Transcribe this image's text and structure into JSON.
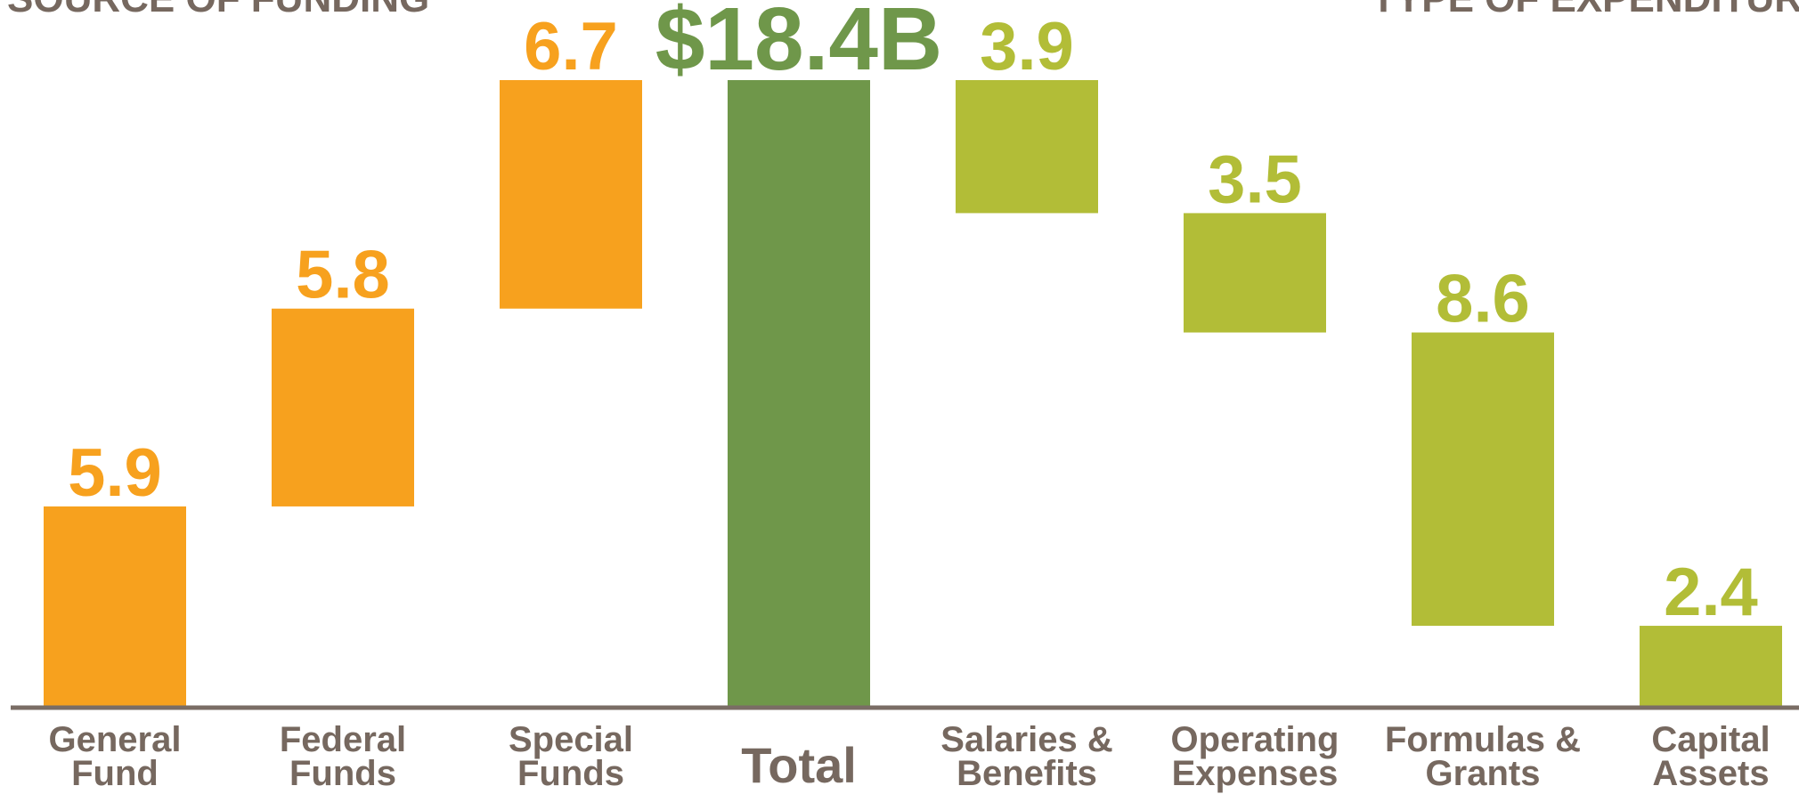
{
  "chart_data": {
    "type": "waterfall",
    "source_heading": "SOURCE OF FUNDING",
    "expenditure_heading": "TYPE OF EXPENDITURE",
    "categories": [
      "General Fund",
      "Federal Funds",
      "Special Funds",
      "Total",
      "Salaries & Benefits",
      "Operating Expenses",
      "Formulas & Grants",
      "Capital Assets"
    ],
    "values": [
      5.9,
      5.8,
      6.7,
      18.4,
      3.9,
      3.5,
      8.6,
      2.4
    ],
    "value_labels": [
      "5.9",
      "5.8",
      "6.7",
      "$18.4B",
      "3.9",
      "3.5",
      "8.6",
      "2.4"
    ],
    "measures": [
      "increase",
      "increase",
      "increase",
      "total",
      "decrease",
      "decrease",
      "decrease",
      "decrease"
    ],
    "colors": [
      "#f7a11e",
      "#f7a11e",
      "#f7a11e",
      "#6f974a",
      "#b2bd37",
      "#b2bd37",
      "#b2bd37",
      "#b2bd37"
    ]
  }
}
